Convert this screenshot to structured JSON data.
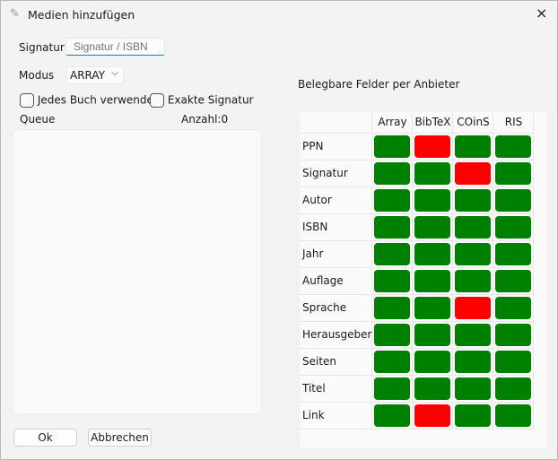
{
  "window": {
    "title": "Medien hinzufügen",
    "icon": "pencil-icon",
    "close": "×"
  },
  "form": {
    "signatur_label": "Signatur",
    "signatur_value": "",
    "signatur_placeholder": "Signatur / ISBN",
    "modus_label": "Modus",
    "modus_value": "ARRAY",
    "check_every_book": "Jedes Buch verwenden",
    "check_every_book_checked": false,
    "check_exact": "Exakte Signatur",
    "check_exact_checked": false,
    "queue_label": "Queue",
    "count_label": "Anzahl:0"
  },
  "buttons": {
    "ok": "Ok",
    "cancel": "Abbrechen"
  },
  "fields": {
    "title": "Belegbare Felder per Anbieter",
    "columns": [
      "Array",
      "BibTeX",
      "COinS",
      "RIS"
    ],
    "colors": {
      "yes": "#008000",
      "no": "#ff0000"
    },
    "rows": [
      {
        "label": "PPN",
        "values": [
          true,
          false,
          true,
          true
        ]
      },
      {
        "label": "Signatur",
        "values": [
          true,
          true,
          false,
          true
        ]
      },
      {
        "label": "Autor",
        "values": [
          true,
          true,
          true,
          true
        ]
      },
      {
        "label": "ISBN",
        "values": [
          true,
          true,
          true,
          true
        ]
      },
      {
        "label": "Jahr",
        "values": [
          true,
          true,
          true,
          true
        ]
      },
      {
        "label": "Auflage",
        "values": [
          true,
          true,
          true,
          true
        ]
      },
      {
        "label": "Sprache",
        "values": [
          true,
          true,
          false,
          true
        ]
      },
      {
        "label": "Herausgeber",
        "values": [
          true,
          true,
          true,
          true
        ]
      },
      {
        "label": "Seiten",
        "values": [
          true,
          true,
          true,
          true
        ]
      },
      {
        "label": "Titel",
        "values": [
          true,
          true,
          true,
          true
        ]
      },
      {
        "label": "Link",
        "values": [
          true,
          false,
          true,
          true
        ]
      }
    ]
  }
}
